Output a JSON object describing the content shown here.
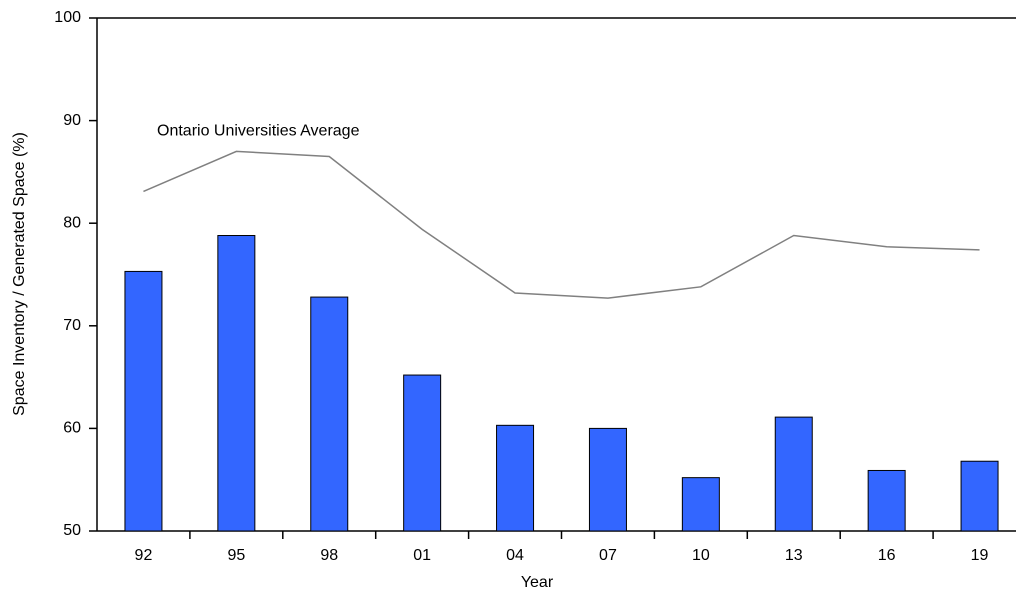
{
  "chart_data": {
    "type": "bar",
    "x_label": "Year",
    "y_label": "Space Inventory / Generated Space (%)",
    "categories": [
      "92",
      "95",
      "98",
      "01",
      "04",
      "07",
      "10",
      "13",
      "16",
      "19"
    ],
    "series": [
      {
        "type": "bar",
        "color": "#3366ff",
        "values": [
          75.3,
          78.8,
          72.8,
          65.2,
          60.3,
          60.0,
          55.2,
          61.1,
          55.9,
          56.8
        ]
      },
      {
        "type": "line",
        "name": "Ontario Universities Average",
        "color": "#808080",
        "values": [
          83.1,
          87.0,
          86.5,
          79.4,
          73.2,
          72.7,
          73.8,
          78.8,
          77.7,
          77.4
        ]
      }
    ],
    "ylim": [
      50,
      100
    ],
    "yticks": [
      50,
      60,
      70,
      80,
      90,
      100
    ]
  }
}
